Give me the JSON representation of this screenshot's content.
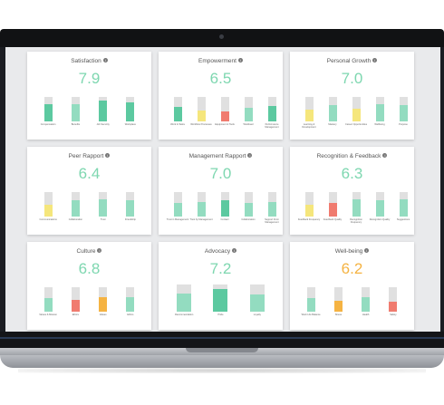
{
  "colors": {
    "score_good": "#7ed7b0",
    "score_warn": "#f5b342",
    "bar_track": "#e0e0e0",
    "bar_green": "#5cc9a0",
    "bar_light_green": "#93dcc0",
    "bar_yellow": "#f5e67c",
    "bar_red": "#f07b6f",
    "bar_orange": "#f5b342"
  },
  "cards": [
    {
      "title": "Satisfaction",
      "score": "7.9",
      "status": "good",
      "bars": [
        {
          "label": "Compensation",
          "level": 0.72,
          "color": "#5cc9a0"
        },
        {
          "label": "Benefits",
          "level": 0.72,
          "color": "#93dcc0"
        },
        {
          "label": "Job Security",
          "level": 0.85,
          "color": "#5cc9a0"
        },
        {
          "label": "Workplace",
          "level": 0.78,
          "color": "#5cc9a0"
        }
      ]
    },
    {
      "title": "Empowerment",
      "score": "6.5",
      "status": "good",
      "bars": [
        {
          "label": "Work & Tasks",
          "level": 0.6,
          "color": "#5cc9a0"
        },
        {
          "label": "Workflow Processes",
          "level": 0.45,
          "color": "#f5e67c"
        },
        {
          "label": "Equipment & Tools",
          "level": 0.42,
          "color": "#f07b6f"
        },
        {
          "label": "Workload",
          "level": 0.55,
          "color": "#93dcc0"
        },
        {
          "label": "Performance Management",
          "level": 0.62,
          "color": "#5cc9a0"
        }
      ]
    },
    {
      "title": "Personal Growth",
      "score": "7.0",
      "status": "good",
      "bars": [
        {
          "label": "Learning & Development",
          "level": 0.5,
          "color": "#f5e67c"
        },
        {
          "label": "Mastery",
          "level": 0.68,
          "color": "#93dcc0"
        },
        {
          "label": "Career Opportunities",
          "level": 0.52,
          "color": "#f5e67c"
        },
        {
          "label": "Wellbeing",
          "level": 0.7,
          "color": "#93dcc0"
        },
        {
          "label": "Purpose",
          "level": 0.66,
          "color": "#93dcc0"
        }
      ]
    },
    {
      "title": "Peer Rapport",
      "score": "6.4",
      "status": "good",
      "bars": [
        {
          "label": "Communications",
          "level": 0.5,
          "color": "#f5e67c"
        },
        {
          "label": "Collaboration",
          "level": 0.65,
          "color": "#93dcc0"
        },
        {
          "label": "Trust",
          "level": 0.7,
          "color": "#93dcc0"
        },
        {
          "label": "Friendship",
          "level": 0.68,
          "color": "#93dcc0"
        }
      ]
    },
    {
      "title": "Management Rapport",
      "score": "7.0",
      "status": "good",
      "bars": [
        {
          "label": "Trust in Management",
          "level": 0.55,
          "color": "#93dcc0"
        },
        {
          "label": "Trust by Management",
          "level": 0.58,
          "color": "#93dcc0"
        },
        {
          "label": "Contact",
          "level": 0.65,
          "color": "#5cc9a0"
        },
        {
          "label": "Collaboration",
          "level": 0.55,
          "color": "#93dcc0"
        },
        {
          "label": "Support From Management",
          "level": 0.58,
          "color": "#93dcc0"
        }
      ]
    },
    {
      "title": "Recognition & Feedback",
      "score": "6.3",
      "status": "good",
      "bars": [
        {
          "label": "Feedback Frequency",
          "level": 0.48,
          "color": "#f5e67c"
        },
        {
          "label": "Feedback Quality",
          "level": 0.55,
          "color": "#f07b6f"
        },
        {
          "label": "Recognition Frequency",
          "level": 0.72,
          "color": "#93dcc0"
        },
        {
          "label": "Recognition Quality",
          "level": 0.66,
          "color": "#93dcc0"
        },
        {
          "label": "Suggestions",
          "level": 0.7,
          "color": "#93dcc0"
        }
      ]
    },
    {
      "title": "Culture",
      "score": "6.8",
      "status": "good",
      "bars": [
        {
          "label": "Values & Mission",
          "level": 0.55,
          "color": "#93dcc0"
        },
        {
          "label": "Ethics",
          "level": 0.48,
          "color": "#f07b6f"
        },
        {
          "label": "Values",
          "level": 0.6,
          "color": "#f5b342"
        },
        {
          "label": "Ethics",
          "level": 0.58,
          "color": "#93dcc0"
        }
      ]
    },
    {
      "title": "Advocacy",
      "score": "7.2",
      "status": "good",
      "bars": [
        {
          "label": "Recommendation",
          "level": 0.68,
          "color": "#93dcc0"
        },
        {
          "label": "Pride",
          "level": 0.85,
          "color": "#5cc9a0"
        },
        {
          "label": "Loyalty",
          "level": 0.62,
          "color": "#93dcc0"
        }
      ]
    },
    {
      "title": "Well-being",
      "score": "6.2",
      "status": "warn",
      "bars": [
        {
          "label": "Work Life Balance",
          "level": 0.55,
          "color": "#93dcc0"
        },
        {
          "label": "Stress",
          "level": 0.45,
          "color": "#f5b342"
        },
        {
          "label": "Health",
          "level": 0.6,
          "color": "#93dcc0"
        },
        {
          "label": "Safety",
          "level": 0.42,
          "color": "#f07b6f"
        }
      ]
    }
  ]
}
